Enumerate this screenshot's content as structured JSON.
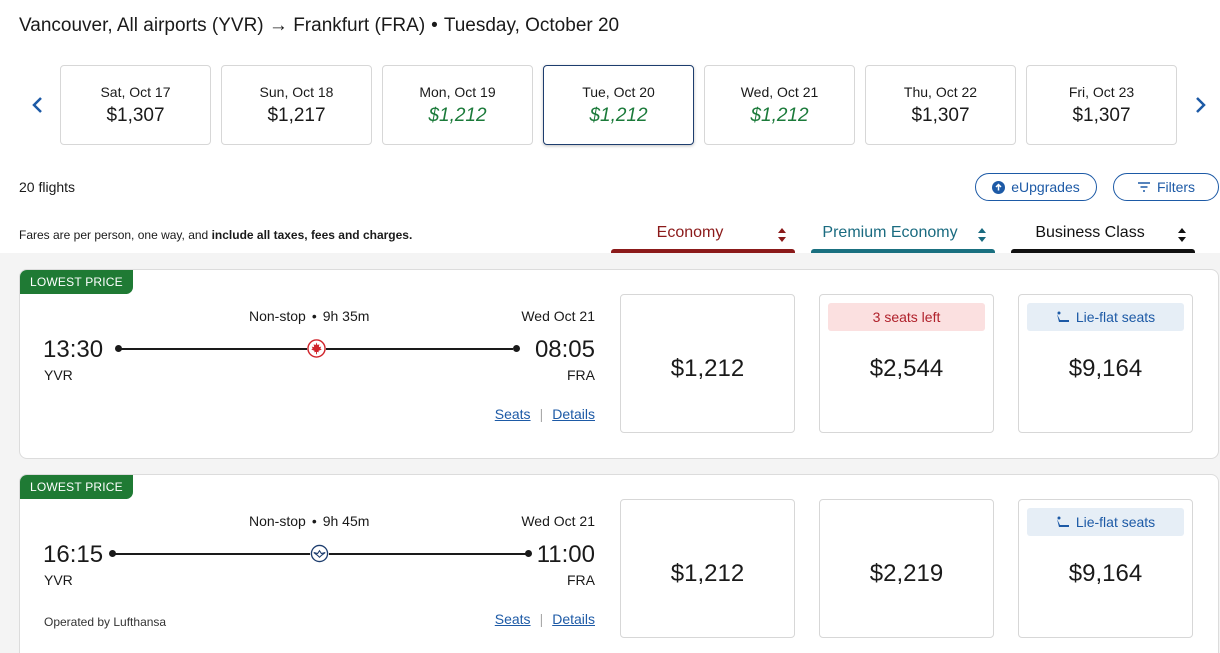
{
  "header": {
    "route": "Vancouver, All airports (YVR) → Frankfurt (FRA)",
    "separator": "•",
    "date": "Tuesday, October 20"
  },
  "date_strip": [
    {
      "label": "Sat, Oct 17",
      "price": "$1,307",
      "lowest": false
    },
    {
      "label": "Sun, Oct 18",
      "price": "$1,217",
      "lowest": false
    },
    {
      "label": "Mon, Oct 19",
      "price": "$1,212",
      "lowest": true
    },
    {
      "label": "Tue, Oct 20",
      "price": "$1,212",
      "lowest": true,
      "selected": true
    },
    {
      "label": "Wed, Oct 21",
      "price": "$1,212",
      "lowest": true
    },
    {
      "label": "Thu, Oct 22",
      "price": "$1,307",
      "lowest": false
    },
    {
      "label": "Fri, Oct 23",
      "price": "$1,307",
      "lowest": false
    }
  ],
  "toolbar": {
    "flight_count": "20 flights",
    "eupgrades_label": "eUpgrades",
    "filters_label": "Filters"
  },
  "fare_note": {
    "prefix": "Fares are per person, one way, and ",
    "bold": "include all taxes, fees and charges."
  },
  "cabins": {
    "economy": "Economy",
    "premium": "Premium Economy",
    "business": "Business Class"
  },
  "colors": {
    "economy": "#8b1a1a",
    "premium": "#1a7080",
    "business": "#111111",
    "lowest_badge": "#1f7a34",
    "low_price_text": "#1b7a3a",
    "link": "#1d5aa6"
  },
  "flights": [
    {
      "badge": "LOWEST PRICE",
      "stops": "Non-stop",
      "dot": "•",
      "duration": "9h 35m",
      "arrival_date": "Wed Oct 21",
      "departure_time": "13:30",
      "arrival_time": "08:05",
      "origin": "YVR",
      "destination": "FRA",
      "carrier_icon": "maple-leaf-icon",
      "operated_by": "",
      "seats_link": "Seats",
      "details_link": "Details",
      "economy_price": "$1,212",
      "premium_price": "$2,544",
      "premium_tag": "3 seats left",
      "business_price": "$9,164",
      "business_tag": "Lie-flat seats"
    },
    {
      "badge": "LOWEST PRICE",
      "stops": "Non-stop",
      "dot": "•",
      "duration": "9h 45m",
      "arrival_date": "Wed Oct 21",
      "departure_time": "16:15",
      "arrival_time": "11:00",
      "origin": "YVR",
      "destination": "FRA",
      "carrier_icon": "crane-icon",
      "operated_by": "Operated by Lufthansa",
      "seats_link": "Seats",
      "details_link": "Details",
      "economy_price": "$1,212",
      "premium_price": "$2,219",
      "premium_tag": "",
      "business_price": "$9,164",
      "business_tag": "Lie-flat seats"
    }
  ]
}
